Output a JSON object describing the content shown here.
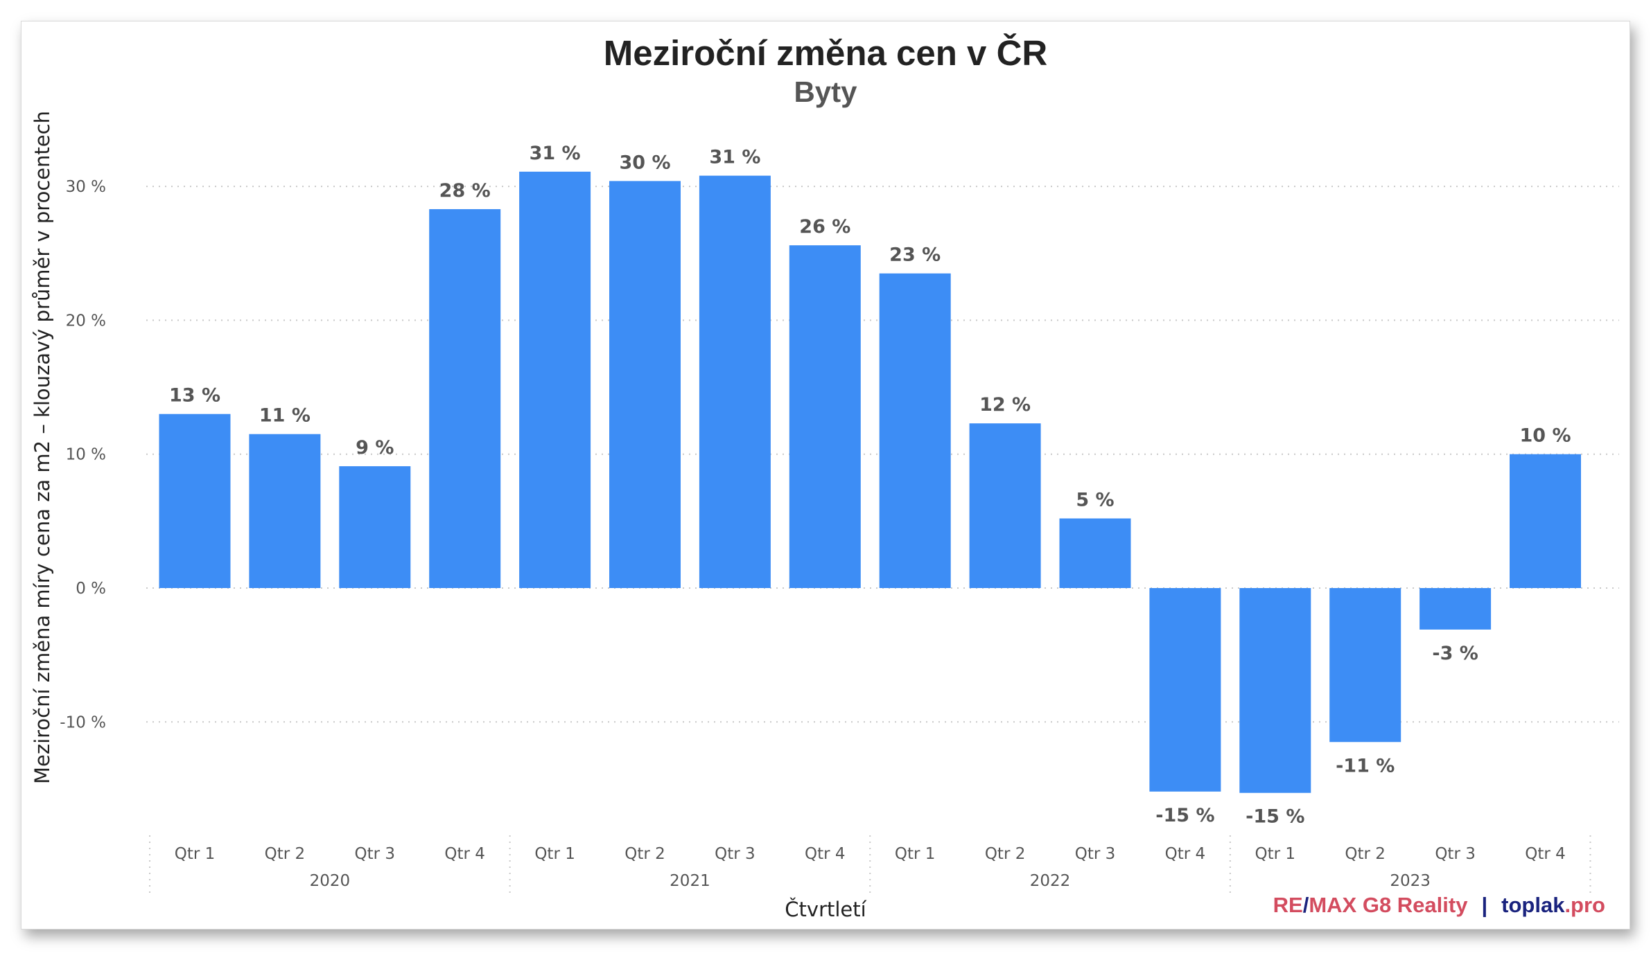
{
  "chart_data": {
    "type": "bar",
    "title": "Meziroční změna cen v ČR",
    "subtitle": "Byty",
    "xlabel": "Čtvrtletí",
    "ylabel": "Meziroční změna míry cena za m2 – klouzavý průměr v procentech",
    "categories": [
      "2020 Qtr 1",
      "2020 Qtr 2",
      "2020 Qtr 3",
      "2020 Qtr 4",
      "2021 Qtr 1",
      "2021 Qtr 2",
      "2021 Qtr 3",
      "2021 Qtr 4",
      "2022 Qtr 1",
      "2022 Qtr 2",
      "2022 Qtr 3",
      "2022 Qtr 4",
      "2023 Qtr 1",
      "2023 Qtr 2",
      "2023 Qtr 3",
      "2023 Qtr 4"
    ],
    "quarter_labels": [
      "Qtr 1",
      "Qtr 2",
      "Qtr 3",
      "Qtr 4",
      "Qtr 1",
      "Qtr 2",
      "Qtr 3",
      "Qtr 4",
      "Qtr 1",
      "Qtr 2",
      "Qtr 3",
      "Qtr 4",
      "Qtr 1",
      "Qtr 2",
      "Qtr 3",
      "Qtr 4"
    ],
    "year_labels": [
      "2020",
      "2021",
      "2022",
      "2023"
    ],
    "values": [
      13.0,
      11.5,
      9.1,
      28.3,
      31.1,
      30.4,
      30.8,
      25.6,
      23.5,
      12.3,
      5.2,
      -15.2,
      -15.3,
      -11.5,
      -3.1,
      10.0
    ],
    "data_labels": [
      "13 %",
      "11 %",
      "9 %",
      "28 %",
      "31 %",
      "30 %",
      "31 %",
      "26 %",
      "23 %",
      "12 %",
      "5 %",
      "-15 %",
      "-15 %",
      "-11 %",
      "-3 %",
      "10 %"
    ],
    "y_ticks": [
      30,
      20,
      10,
      0,
      -10
    ],
    "y_tick_labels": [
      "30 %",
      "20 %",
      "10 %",
      "0 %",
      "-10 %"
    ],
    "ylim": [
      -18.5,
      35
    ],
    "grid": true,
    "legend": "none",
    "bar_color": "#3d8df5"
  },
  "credit": {
    "remax_part1": "RE",
    "remax_slash": "/",
    "remax_part2": "MAX G8 Reality",
    "separator": "|",
    "toplak_main": "toplak",
    "toplak_ext": ".pro"
  }
}
